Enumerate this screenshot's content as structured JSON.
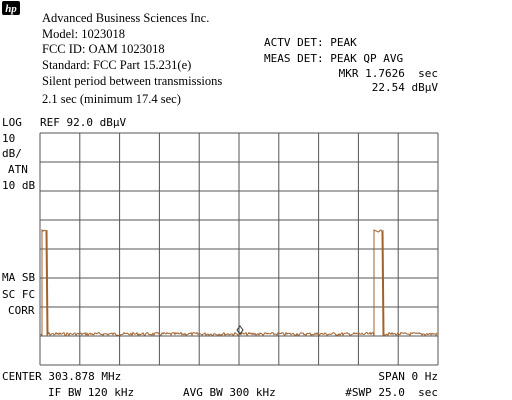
{
  "logo": "hp",
  "header": {
    "lines": [
      "Advanced Business Sciences Inc.",
      "Model: 1023018",
      "FCC ID: OAM 1023018",
      "Standard: FCC Part 15.231(e)",
      "Silent period between transmissions",
      "2.1 sec (minimum 17.4 sec)"
    ]
  },
  "status": {
    "detector": "ACTV DET: PEAK",
    "measure": "MEAS DET: PEAK QP AVG",
    "marker_time": "MKR 1.7626  sec",
    "marker_level": "22.54 dBμV"
  },
  "scale": {
    "mode": "LOG",
    "reference": "REF 92.0 dBμV",
    "lines": [
      "10",
      "dB/",
      "ATN",
      "10 dB"
    ]
  },
  "corrections": [
    "MA SB",
    "SC FC",
    "CORR"
  ],
  "footer": {
    "center": "CENTER 303.878 MHz",
    "span": "SPAN 0 Hz",
    "if_bw": "IF BW 120 kHz",
    "avg_bw": "AVG BW 300 kHz",
    "sweep": "#SWP 25.0  sec"
  }
}
